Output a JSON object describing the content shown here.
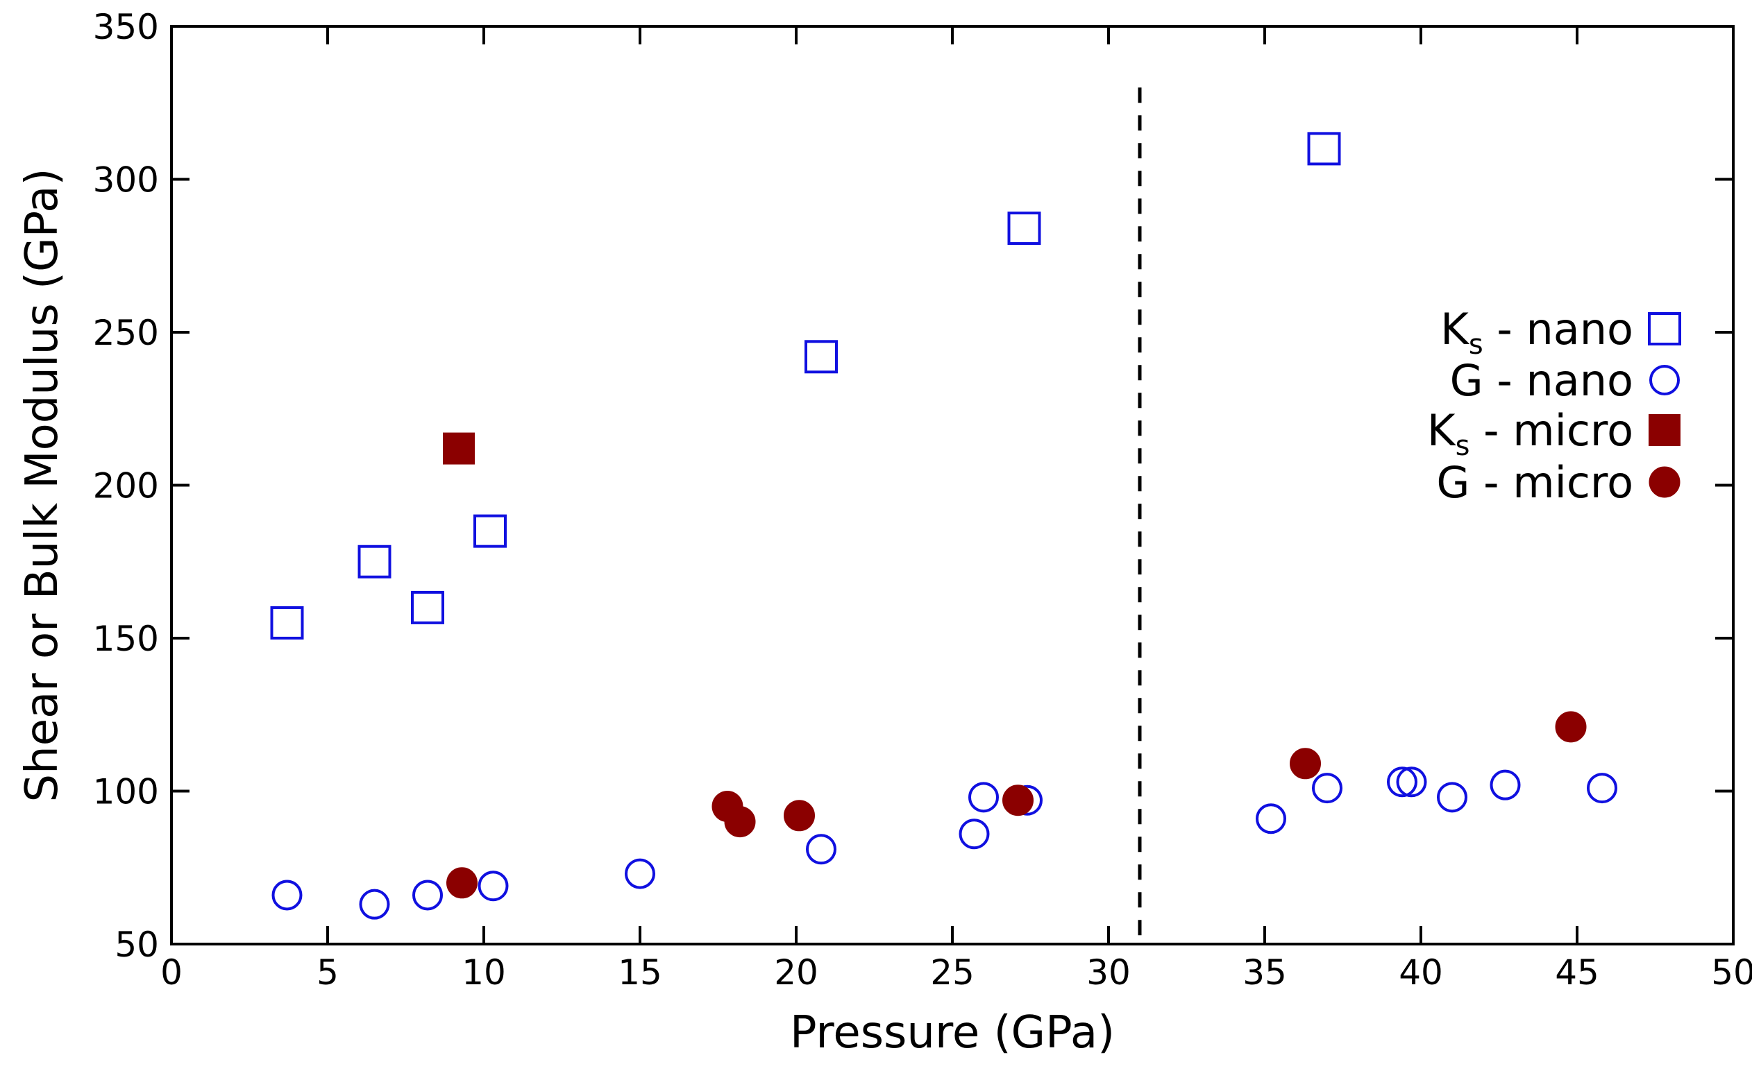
{
  "chart_data": {
    "type": "scatter",
    "title": "",
    "xlabel": "Pressure (GPa)",
    "ylabel": "Shear or Bulk Modulus (GPa)",
    "xlim": [
      0,
      50
    ],
    "ylim": [
      50,
      350
    ],
    "xticks": [
      0,
      5,
      10,
      15,
      20,
      25,
      30,
      35,
      40,
      45,
      50
    ],
    "yticks": [
      50,
      100,
      150,
      200,
      250,
      300,
      350
    ],
    "grid": false,
    "legend_position": "right",
    "vline": {
      "x": 31,
      "style": "dashed"
    },
    "colors": {
      "nano": "#1010e0",
      "micro": "#8b0000"
    },
    "series": [
      {
        "name": "Ks - nano",
        "legend_main": "K",
        "legend_sub": "s",
        "legend_rest": " - nano",
        "marker": "square-open",
        "color": "#1010e0",
        "points": [
          [
            3.7,
            155
          ],
          [
            6.5,
            175
          ],
          [
            8.2,
            160
          ],
          [
            10.2,
            185
          ],
          [
            20.8,
            242
          ],
          [
            27.3,
            284
          ],
          [
            36.9,
            310
          ]
        ]
      },
      {
        "name": "G - nano",
        "legend_main": "G",
        "legend_sub": "",
        "legend_rest": " - nano",
        "marker": "circle-open",
        "color": "#1010e0",
        "points": [
          [
            3.7,
            66
          ],
          [
            6.5,
            63
          ],
          [
            8.2,
            66
          ],
          [
            10.3,
            69
          ],
          [
            15.0,
            73
          ],
          [
            20.8,
            81
          ],
          [
            25.7,
            86
          ],
          [
            26.0,
            98
          ],
          [
            27.4,
            97
          ],
          [
            35.2,
            91
          ],
          [
            37.0,
            101
          ],
          [
            39.4,
            103
          ],
          [
            39.7,
            103
          ],
          [
            41.0,
            98
          ],
          [
            42.7,
            102
          ],
          [
            45.8,
            101
          ]
        ]
      },
      {
        "name": "Ks - micro",
        "legend_main": "K",
        "legend_sub": "s",
        "legend_rest": " - micro",
        "marker": "square-filled",
        "color": "#8b0000",
        "points": [
          [
            9.2,
            212
          ]
        ]
      },
      {
        "name": "G - micro",
        "legend_main": "G",
        "legend_sub": "",
        "legend_rest": " - micro",
        "marker": "circle-filled",
        "color": "#8b0000",
        "points": [
          [
            9.3,
            70
          ],
          [
            17.8,
            95
          ],
          [
            18.2,
            90
          ],
          [
            20.1,
            92
          ],
          [
            27.1,
            97
          ],
          [
            36.3,
            109
          ],
          [
            44.8,
            121
          ]
        ]
      }
    ]
  }
}
